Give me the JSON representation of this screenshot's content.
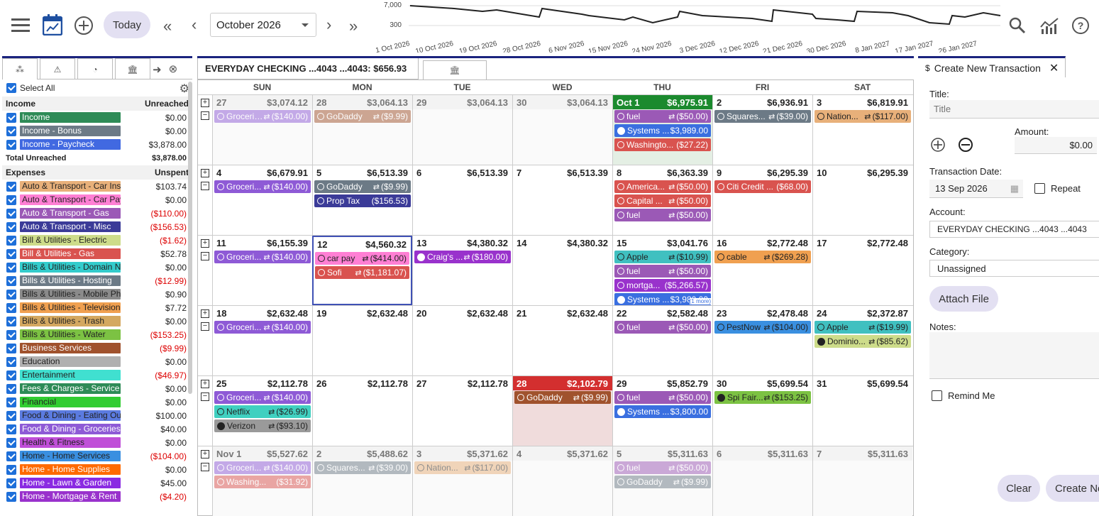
{
  "toolbar": {
    "today_label": "Today",
    "month_value": "October 2026"
  },
  "sparkline": {
    "y_ticks": [
      "7,000",
      "300"
    ],
    "x_labels": [
      "1 Oct 2026",
      "10 Oct 2026",
      "19 Oct 2026",
      "28 Oct 2026",
      "6 Nov 2026",
      "15 Nov 2026",
      "24 Nov 2026",
      "3 Dec 2026",
      "12 Dec 2026",
      "21 Dec 2026",
      "30 Dec 2026",
      "8 Jan 2027",
      "17 Jan 2027",
      "26 Jan 2027"
    ]
  },
  "left": {
    "select_all": "Select All",
    "income_header": "Income",
    "income_sub": "Unreached",
    "income": [
      {
        "label": "Income",
        "amt": "$0.00",
        "color": "#2e8b57",
        "neg": false
      },
      {
        "label": "Income - Bonus",
        "amt": "$0.00",
        "color": "#6c7a86",
        "neg": false
      },
      {
        "label": "Income - Paycheck",
        "amt": "$3,878.00",
        "color": "#4169e1",
        "neg": false
      }
    ],
    "total_label": "Total Unreached",
    "total_amt": "$3,878.00",
    "expenses_header": "Expenses",
    "expenses_sub": "Unspent",
    "expenses": [
      {
        "label": "Auto & Transport - Car Insurance",
        "amt": "$103.74",
        "color": "#e8b07a",
        "fg": "#222",
        "neg": false
      },
      {
        "label": "Auto & Transport - Car Payment",
        "amt": "$0.00",
        "color": "#ff7fd4",
        "fg": "#222",
        "neg": false
      },
      {
        "label": "Auto & Transport - Gas",
        "amt": "($110.00)",
        "color": "#9b59b6",
        "fg": "#fff",
        "neg": true
      },
      {
        "label": "Auto & Transport - Misc",
        "amt": "($156.53)",
        "color": "#3b3b98",
        "fg": "#fff",
        "neg": true
      },
      {
        "label": "Bill & Utilities - Electric",
        "amt": "($1.62)",
        "color": "#cddc8a",
        "fg": "#222",
        "neg": true
      },
      {
        "label": "Bill & Utilities - Gas",
        "amt": "$52.78",
        "color": "#d9534f",
        "fg": "#fff",
        "neg": false
      },
      {
        "label": "Bills & Utilities - Domain Names",
        "amt": "$0.00",
        "color": "#3cc",
        "fg": "#222",
        "neg": false
      },
      {
        "label": "Bills & Utilities - Hosting",
        "amt": "($12.99)",
        "color": "#6c7a86",
        "fg": "#fff",
        "neg": true
      },
      {
        "label": "Bills & Utilities - Mobile Phone",
        "amt": "$0.90",
        "color": "#8a8a8a",
        "fg": "#222",
        "neg": false
      },
      {
        "label": "Bills & Utilities - Television",
        "amt": "$7.72",
        "color": "#f0a050",
        "fg": "#222",
        "neg": false
      },
      {
        "label": "Bills & Utilities - Trash",
        "amt": "$0.00",
        "color": "#d4a860",
        "fg": "#222",
        "neg": false
      },
      {
        "label": "Bills & Utilities - Water",
        "amt": "($153.25)",
        "color": "#7cc243",
        "fg": "#222",
        "neg": true
      },
      {
        "label": "Business Services",
        "amt": "($9.99)",
        "color": "#a0522d",
        "fg": "#fff",
        "neg": true
      },
      {
        "label": "Education",
        "amt": "$0.00",
        "color": "#b0b0b0",
        "fg": "#222",
        "neg": false
      },
      {
        "label": "Entertainment",
        "amt": "($46.97)",
        "color": "#40e0d0",
        "fg": "#222",
        "neg": true
      },
      {
        "label": "Fees & Charges - Service Fee",
        "amt": "$0.00",
        "color": "#2e8b57",
        "fg": "#fff",
        "neg": false
      },
      {
        "label": "Financial",
        "amt": "$0.00",
        "color": "#32cd32",
        "fg": "#222",
        "neg": false
      },
      {
        "label": "Food & Dining - Eating Out",
        "amt": "$100.00",
        "color": "#5b7be0",
        "fg": "#222",
        "neg": false
      },
      {
        "label": "Food & Dining - Groceries",
        "amt": "$40.00",
        "color": "#8e5ad6",
        "fg": "#fff",
        "neg": false
      },
      {
        "label": "Health & Fitness",
        "amt": "$0.00",
        "color": "#c04fd8",
        "fg": "#222",
        "neg": false
      },
      {
        "label": "Home - Home Services",
        "amt": "($104.00)",
        "color": "#3a8fe0",
        "fg": "#222",
        "neg": true
      },
      {
        "label": "Home - Home Supplies",
        "amt": "$0.00",
        "color": "#ff6a00",
        "fg": "#fff",
        "neg": false
      },
      {
        "label": "Home - Lawn & Garden",
        "amt": "$45.00",
        "color": "#8a2be2",
        "fg": "#fff",
        "neg": false
      },
      {
        "label": "Home - Mortgage & Rent",
        "amt": "($4.20)",
        "color": "#9932cc",
        "fg": "#fff",
        "neg": true
      }
    ]
  },
  "calendar": {
    "account_label": "EVERYDAY CHECKING ...4043 ...4043: $656.93",
    "dow": [
      "SUN",
      "MON",
      "TUE",
      "WED",
      "THU",
      "FRI",
      "SAT"
    ],
    "weeks": [
      [
        {
          "n": "27",
          "b": "$3,074.12",
          "k": "other",
          "ev": [
            {
              "t": "Groceri…",
              "a": "($140.00)",
              "c": "#8e5ad6",
              "s": "o",
              "r": true,
              "f": true
            }
          ]
        },
        {
          "n": "28",
          "b": "$3,064.13",
          "k": "other",
          "ev": [
            {
              "t": "GoDaddy",
              "a": "($9.99)",
              "c": "#a0522d",
              "s": "o",
              "r": true,
              "f": true
            }
          ]
        },
        {
          "n": "29",
          "b": "$3,064.13",
          "k": "other",
          "ev": []
        },
        {
          "n": "30",
          "b": "$3,064.13",
          "k": "other",
          "ev": []
        },
        {
          "n": "Oct 1",
          "b": "$6,975.91",
          "k": "oct1",
          "ev": [
            {
              "t": "fuel",
              "a": "($50.00)",
              "c": "#9b59b6",
              "s": "o",
              "r": true
            },
            {
              "t": "Systems ...",
              "a": "$3,989.00",
              "c": "#3a6fe0",
              "s": "c",
              "r": false
            },
            {
              "t": "Washingto...",
              "a": "($27.22)",
              "c": "#d9534f",
              "s": "o",
              "r": false
            }
          ]
        },
        {
          "n": "2",
          "b": "$6,936.91",
          "k": "",
          "ev": [
            {
              "t": "Squares...",
              "a": "($39.00)",
              "c": "#6c7a86",
              "s": "o",
              "r": true
            }
          ]
        },
        {
          "n": "3",
          "b": "$6,819.91",
          "k": "",
          "ev": [
            {
              "t": "Nation...",
              "a": "($117.00)",
              "c": "#e8b07a",
              "s": "o",
              "r": true,
              "dark": true
            }
          ]
        }
      ],
      [
        {
          "n": "4",
          "b": "$6,679.91",
          "k": "",
          "ev": [
            {
              "t": "Groceri...",
              "a": "($140.00)",
              "c": "#8e5ad6",
              "s": "o",
              "r": true
            }
          ]
        },
        {
          "n": "5",
          "b": "$6,513.39",
          "k": "",
          "ev": [
            {
              "t": "GoDaddy",
              "a": "($9.99)",
              "c": "#6c7a86",
              "s": "o",
              "r": true
            },
            {
              "t": "Prop Tax",
              "a": "($156.53)",
              "c": "#3b3b98",
              "s": "o",
              "r": false
            }
          ]
        },
        {
          "n": "6",
          "b": "$6,513.39",
          "k": "",
          "ev": []
        },
        {
          "n": "7",
          "b": "$6,513.39",
          "k": "",
          "ev": []
        },
        {
          "n": "8",
          "b": "$6,363.39",
          "k": "",
          "ev": [
            {
              "t": "America...",
              "a": "($50.00)",
              "c": "#d9534f",
              "s": "o",
              "r": true
            },
            {
              "t": "Capital ...",
              "a": "($50.00)",
              "c": "#d9534f",
              "s": "o",
              "r": true
            },
            {
              "t": "fuel",
              "a": "($50.00)",
              "c": "#9b59b6",
              "s": "o",
              "r": true
            }
          ]
        },
        {
          "n": "9",
          "b": "$6,295.39",
          "k": "",
          "ev": [
            {
              "t": "Citi Credit ...",
              "a": "($68.00)",
              "c": "#d9534f",
              "s": "o",
              "r": false
            }
          ]
        },
        {
          "n": "10",
          "b": "$6,295.39",
          "k": "",
          "ev": []
        }
      ],
      [
        {
          "n": "11",
          "b": "$6,155.39",
          "k": "",
          "ev": [
            {
              "t": "Groceri...",
              "a": "($140.00)",
              "c": "#8e5ad6",
              "s": "o",
              "r": true
            }
          ]
        },
        {
          "n": "12",
          "b": "$4,560.32",
          "k": "sel",
          "ev": [
            {
              "t": "car pay",
              "a": "($414.00)",
              "c": "#ff7fd4",
              "s": "o",
              "r": true,
              "dark": true
            },
            {
              "t": "Sofi",
              "a": "($1,181.07)",
              "c": "#d9534f",
              "s": "o",
              "r": true
            }
          ]
        },
        {
          "n": "13",
          "b": "$4,380.32",
          "k": "",
          "ev": [
            {
              "t": "Craig's ...",
              "a": "($180.00)",
              "c": "#9932cc",
              "s": "c",
              "r": true
            }
          ]
        },
        {
          "n": "14",
          "b": "$4,380.32",
          "k": "",
          "ev": []
        },
        {
          "n": "15",
          "b": "$3,041.76",
          "k": "",
          "ev": [
            {
              "t": "Apple",
              "a": "($10.99)",
              "c": "#40c0c0",
              "s": "o",
              "r": true,
              "dark": true
            },
            {
              "t": "fuel",
              "a": "($50.00)",
              "c": "#9b59b6",
              "s": "o",
              "r": true
            },
            {
              "t": "mortga...",
              "a": "($5,266.57)",
              "c": "#9932cc",
              "s": "o",
              "r": false
            },
            {
              "t": "Systems ...",
              "a": "$3,980.00",
              "c": "#3a6fe0",
              "s": "c",
              "r": false
            }
          ],
          "more": "(1 more)"
        },
        {
          "n": "16",
          "b": "$2,772.48",
          "k": "",
          "ev": [
            {
              "t": "cable",
              "a": "($269.28)",
              "c": "#f0a050",
              "s": "o",
              "r": true,
              "dark": true
            }
          ]
        },
        {
          "n": "17",
          "b": "$2,772.48",
          "k": "",
          "ev": []
        }
      ],
      [
        {
          "n": "18",
          "b": "$2,632.48",
          "k": "",
          "ev": [
            {
              "t": "Groceri...",
              "a": "($140.00)",
              "c": "#8e5ad6",
              "s": "o",
              "r": true
            }
          ]
        },
        {
          "n": "19",
          "b": "$2,632.48",
          "k": "",
          "ev": []
        },
        {
          "n": "20",
          "b": "$2,632.48",
          "k": "",
          "ev": []
        },
        {
          "n": "21",
          "b": "$2,632.48",
          "k": "",
          "ev": []
        },
        {
          "n": "22",
          "b": "$2,582.48",
          "k": "",
          "ev": [
            {
              "t": "fuel",
              "a": "($50.00)",
              "c": "#9b59b6",
              "s": "o",
              "r": true
            }
          ]
        },
        {
          "n": "23",
          "b": "$2,478.48",
          "k": "",
          "ev": [
            {
              "t": "PestNow",
              "a": "($104.00)",
              "c": "#3a8fe0",
              "s": "o",
              "r": true,
              "dark": true
            }
          ]
        },
        {
          "n": "24",
          "b": "$2,372.87",
          "k": "",
          "ev": [
            {
              "t": "Apple",
              "a": "($19.99)",
              "c": "#40c0c0",
              "s": "o",
              "r": true,
              "dark": true
            },
            {
              "t": "Dominio...",
              "a": "($85.62)",
              "c": "#cddc8a",
              "s": "c",
              "r": true,
              "dark": true
            }
          ]
        }
      ],
      [
        {
          "n": "25",
          "b": "$2,112.78",
          "k": "",
          "ev": [
            {
              "t": "Groceri...",
              "a": "($140.00)",
              "c": "#8e5ad6",
              "s": "o",
              "r": true
            },
            {
              "t": "Netflix",
              "a": "($26.99)",
              "c": "#40d0c0",
              "s": "o",
              "r": true,
              "dark": true
            },
            {
              "t": "Verizon",
              "a": "($93.10)",
              "c": "#9a9a9a",
              "s": "c",
              "r": true,
              "dark": true
            }
          ]
        },
        {
          "n": "26",
          "b": "$2,112.78",
          "k": "",
          "ev": []
        },
        {
          "n": "27",
          "b": "$2,112.78",
          "k": "",
          "ev": []
        },
        {
          "n": "28",
          "b": "$2,102.79",
          "k": "today",
          "ev": [
            {
              "t": "GoDaddy",
              "a": "($9.99)",
              "c": "#a0522d",
              "s": "o",
              "r": true
            }
          ]
        },
        {
          "n": "29",
          "b": "$5,852.79",
          "k": "",
          "ev": [
            {
              "t": "fuel",
              "a": "($50.00)",
              "c": "#9b59b6",
              "s": "o",
              "r": true
            },
            {
              "t": "Systems ...",
              "a": "$3,800.00",
              "c": "#3a6fe0",
              "s": "c",
              "r": false
            }
          ]
        },
        {
          "n": "30",
          "b": "$5,699.54",
          "k": "",
          "ev": [
            {
              "t": "Spi Fair...",
              "a": "($153.25)",
              "c": "#7cc243",
              "s": "c",
              "r": true,
              "dark": true
            }
          ]
        },
        {
          "n": "31",
          "b": "$5,699.54",
          "k": "",
          "ev": []
        }
      ],
      [
        {
          "n": "Nov 1",
          "b": "$5,527.62",
          "k": "other",
          "ev": [
            {
              "t": "Groceri...",
              "a": "($140.00)",
              "c": "#8e5ad6",
              "s": "o",
              "r": true,
              "f": true
            },
            {
              "t": "Washing...",
              "a": "($31.92)",
              "c": "#d9534f",
              "s": "o",
              "r": false,
              "f": true
            }
          ]
        },
        {
          "n": "2",
          "b": "$5,488.62",
          "k": "other",
          "ev": [
            {
              "t": "Squares...",
              "a": "($39.00)",
              "c": "#6c7a86",
              "s": "o",
              "r": true,
              "f": true
            }
          ]
        },
        {
          "n": "3",
          "b": "$5,371.62",
          "k": "other",
          "ev": [
            {
              "t": "Nation...",
              "a": "($117.00)",
              "c": "#e8b07a",
              "s": "o",
              "r": true,
              "f": true,
              "dark": true
            }
          ]
        },
        {
          "n": "4",
          "b": "$5,371.62",
          "k": "other",
          "ev": []
        },
        {
          "n": "5",
          "b": "$5,311.63",
          "k": "other",
          "ev": [
            {
              "t": "fuel",
              "a": "($50.00)",
              "c": "#9b59b6",
              "s": "o",
              "r": true,
              "f": true
            },
            {
              "t": "GoDaddy",
              "a": "($9.99)",
              "c": "#6c7a86",
              "s": "o",
              "r": true,
              "f": true
            }
          ]
        },
        {
          "n": "6",
          "b": "$5,311.63",
          "k": "other",
          "ev": []
        },
        {
          "n": "7",
          "b": "$5,311.63",
          "k": "other",
          "ev": []
        }
      ]
    ]
  },
  "form": {
    "tab_label": "Create New Transaction",
    "title_label": "Title:",
    "title_placeholder": "Title",
    "amount_label": "Amount:",
    "amount_value": "$0.00",
    "date_label": "Transaction Date:",
    "date_value": "13 Sep 2026",
    "repeat_label": "Repeat",
    "account_label": "Account:",
    "account_value": "EVERYDAY CHECKING ...4043 ...4043",
    "category_label": "Category:",
    "category_value": "Unassigned",
    "attach_label": "Attach File",
    "notes_label": "Notes:",
    "remind_label": "Remind Me",
    "clear_label": "Clear",
    "create_label": "Create New"
  }
}
